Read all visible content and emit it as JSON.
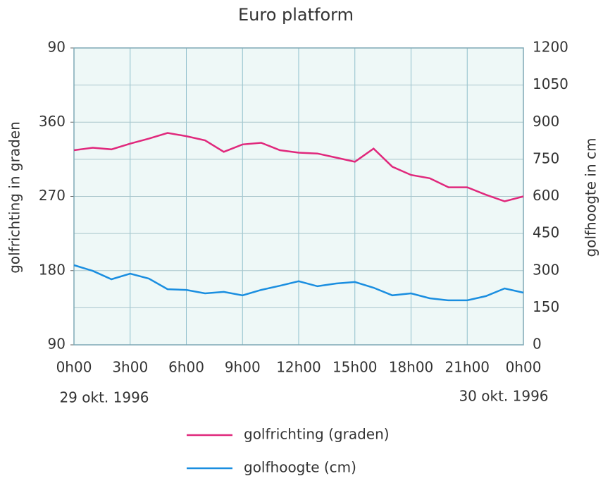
{
  "chart_data": {
    "type": "line",
    "title": "Euro platform",
    "ylabel": "golfrichting in graden",
    "y2label": "golfhoogte in cm",
    "annotations": [
      "29 okt. 1996",
      "30 okt. 1996"
    ],
    "x": [
      0,
      1,
      2,
      3,
      4,
      5,
      6,
      7,
      8,
      9,
      10,
      11,
      12,
      13,
      14,
      15,
      16,
      17,
      18,
      19,
      20,
      21,
      22,
      23,
      24
    ],
    "xlim": [
      0,
      24
    ],
    "xticks": [
      {
        "value": 0,
        "label": "0h00"
      },
      {
        "value": 3,
        "label": "3h00"
      },
      {
        "value": 6,
        "label": "6h00"
      },
      {
        "value": 9,
        "label": "9h00"
      },
      {
        "value": 12,
        "label": "12h00"
      },
      {
        "value": 15,
        "label": "15h00"
      },
      {
        "value": 18,
        "label": "18h00"
      },
      {
        "value": 21,
        "label": "21h00"
      },
      {
        "value": 24,
        "label": "0h00"
      }
    ],
    "ylim": [
      90,
      450
    ],
    "yticks": [
      90,
      180,
      270,
      360,
      {
        "value": 450,
        "label": "90"
      }
    ],
    "y2lim": [
      0,
      1200
    ],
    "y2ticks": [
      0,
      150,
      300,
      450,
      600,
      750,
      900,
      1050,
      1200
    ],
    "grid": true,
    "series": [
      {
        "name": "golfrichting (graden)",
        "color": "#e0287c",
        "values": [
          326,
          329,
          327,
          334,
          340,
          347,
          343,
          338,
          324,
          333,
          335,
          326,
          323,
          322,
          317,
          312,
          328,
          306,
          296,
          292,
          281,
          281,
          272,
          264,
          270
        ]
      },
      {
        "name": "golfhoogte (cm)",
        "color": "#1a8ee0",
        "axis": "y2",
        "values": [
          322,
          299,
          265,
          288,
          268,
          225,
          222,
          208,
          214,
          200,
          222,
          239,
          257,
          237,
          248,
          254,
          231,
          200,
          208,
          188,
          180,
          180,
          197,
          228,
          211
        ]
      }
    ]
  }
}
